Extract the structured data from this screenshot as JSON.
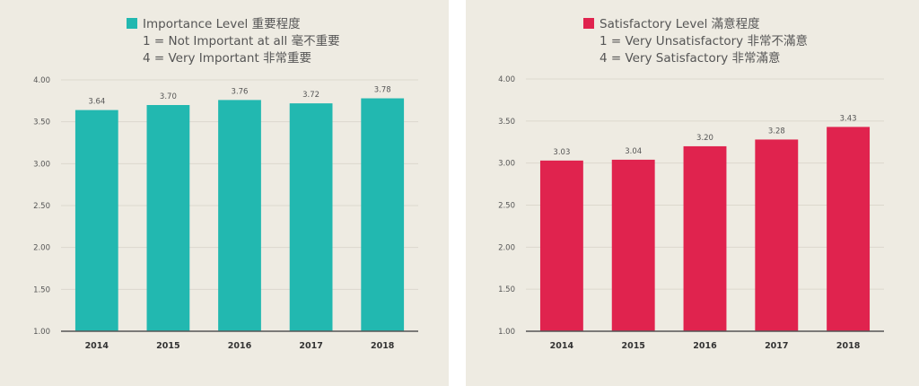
{
  "chart_data": [
    {
      "type": "bar",
      "categories": [
        "2014",
        "2015",
        "2016",
        "2017",
        "2018"
      ],
      "values": [
        3.64,
        3.7,
        3.76,
        3.72,
        3.78
      ],
      "value_labels": [
        "3.64",
        "3.70",
        "3.76",
        "3.72",
        "3.78"
      ],
      "yticks": [
        "4.00",
        "3.50",
        "3.00",
        "2.50",
        "2.00",
        "1.50",
        "1.00"
      ],
      "ylim": [
        1,
        4
      ],
      "legend": [
        "Importance Level 重要程度",
        "1 = Not Important at all 毫不重要",
        "4 = Very Important 非常重要"
      ],
      "legend_placement": "top-center",
      "grid": true,
      "color": "#22b8b0"
    },
    {
      "type": "bar",
      "categories": [
        "2014",
        "2015",
        "2016",
        "2017",
        "2018"
      ],
      "values": [
        3.03,
        3.04,
        3.2,
        3.28,
        3.43
      ],
      "value_labels": [
        "3.03",
        "3.04",
        "3.20",
        "3.28",
        "3.43"
      ],
      "yticks": [
        "4.00",
        "3.50",
        "3.00",
        "2.50",
        "2.00",
        "1.50",
        "1.00"
      ],
      "ylim": [
        1,
        4
      ],
      "legend": [
        "Satisfactory Level 滿意程度",
        "1 = Very Unsatisfactory 非常不滿意",
        "4 = Very Satisfactory 非常滿意"
      ],
      "legend_placement": "top-center",
      "grid": true,
      "color": "#e0234e"
    }
  ]
}
